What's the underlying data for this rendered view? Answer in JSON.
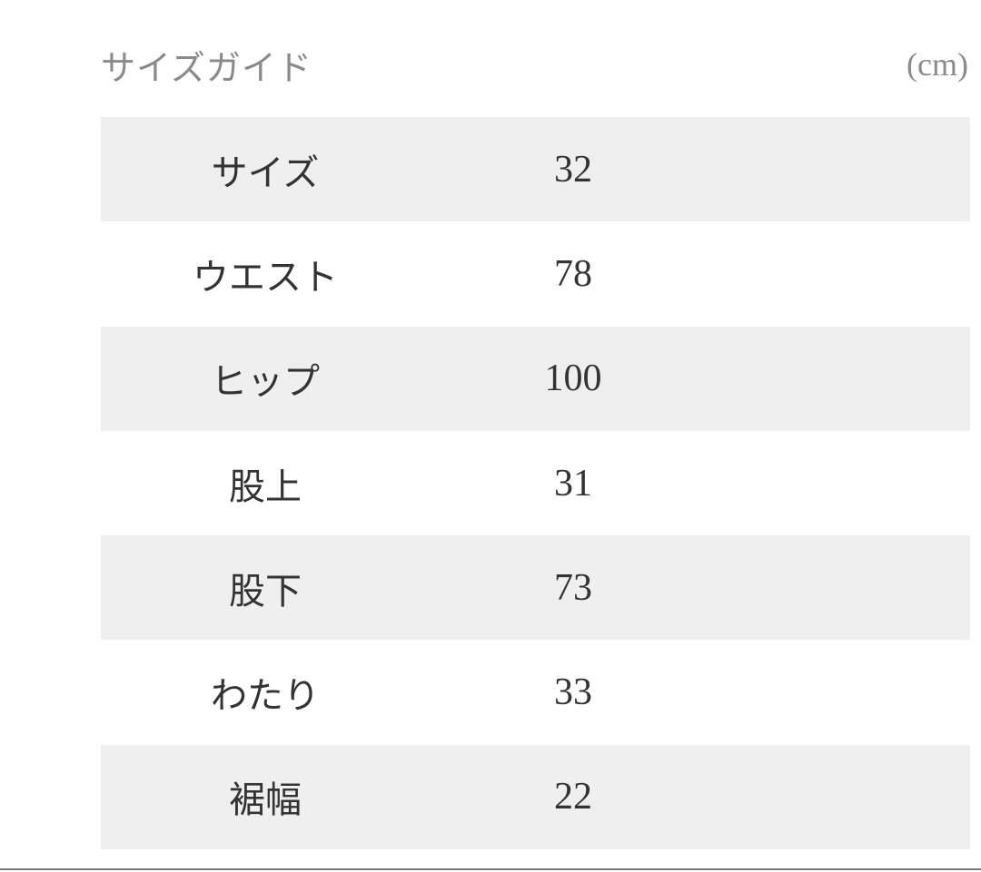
{
  "header": {
    "title": "サイズガイド",
    "unit": "(cm)"
  },
  "table": {
    "rows": [
      {
        "label": "サイズ",
        "value": "32"
      },
      {
        "label": "ウエスト",
        "value": "78"
      },
      {
        "label": "ヒップ",
        "value": "100"
      },
      {
        "label": "股上",
        "value": "31"
      },
      {
        "label": "股下",
        "value": "73"
      },
      {
        "label": "わたり",
        "value": "33"
      },
      {
        "label": "裾幅",
        "value": "22"
      }
    ]
  },
  "colors": {
    "row_shade": "#efefef",
    "text": "#333333",
    "muted": "#8a8a8a"
  }
}
